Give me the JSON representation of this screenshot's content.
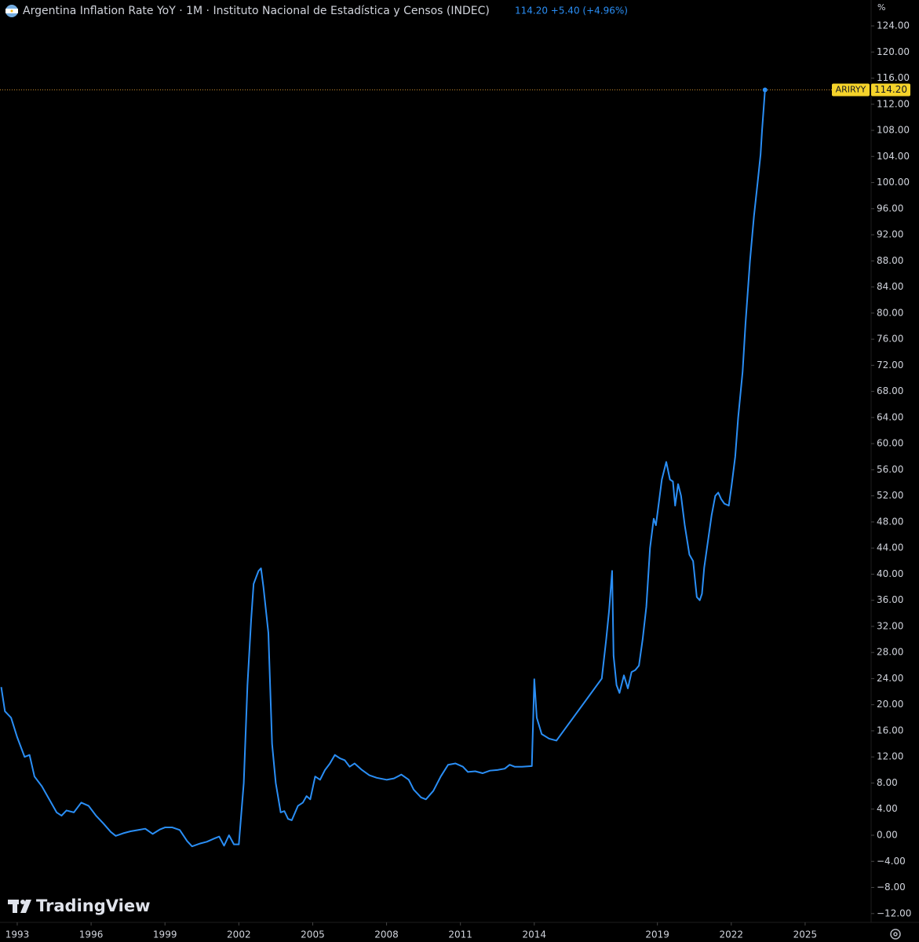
{
  "chart_data": {
    "type": "line",
    "title": "Argentina Inflation Rate YoY · 1M · Instituto Nacional de Estadística y Censos (INDEC)",
    "header_value": "114.20 +5.40 (+4.96%)",
    "y_unit": "%",
    "price_label": "114.20",
    "watermark": "TradingView",
    "xlim": [
      1992.3,
      2027.68
    ],
    "xticks": [
      1993,
      1996,
      1999,
      2002,
      2005,
      2008,
      2011,
      2014,
      2019,
      2022,
      2025
    ],
    "ylim": [
      -13.35,
      127.97
    ],
    "yticks": [
      {
        "value": -12,
        "label": "−12.00"
      },
      {
        "value": -8,
        "label": "−8.00"
      },
      {
        "value": -4,
        "label": "−4.00"
      },
      {
        "value": 0,
        "label": "0.00"
      },
      {
        "value": 4,
        "label": "4.00"
      },
      {
        "value": 8,
        "label": "8.00"
      },
      {
        "value": 12,
        "label": "12.00"
      },
      {
        "value": 16,
        "label": "16.00"
      },
      {
        "value": 20,
        "label": "20.00"
      },
      {
        "value": 24,
        "label": "24.00"
      },
      {
        "value": 28,
        "label": "28.00"
      },
      {
        "value": 32,
        "label": "32.00"
      },
      {
        "value": 36,
        "label": "36.00"
      },
      {
        "value": 40,
        "label": "40.00"
      },
      {
        "value": 44,
        "label": "44.00"
      },
      {
        "value": 48,
        "label": "48.00"
      },
      {
        "value": 52,
        "label": "52.00"
      },
      {
        "value": 56,
        "label": "56.00"
      },
      {
        "value": 60,
        "label": "60.00"
      },
      {
        "value": 64,
        "label": "64.00"
      },
      {
        "value": 68,
        "label": "68.00"
      },
      {
        "value": 72,
        "label": "72.00"
      },
      {
        "value": 76,
        "label": "76.00"
      },
      {
        "value": 80,
        "label": "80.00"
      },
      {
        "value": 84,
        "label": "84.00"
      },
      {
        "value": 88,
        "label": "88.00"
      },
      {
        "value": 92,
        "label": "92.00"
      },
      {
        "value": 96,
        "label": "96.00"
      },
      {
        "value": 100,
        "label": "100.00"
      },
      {
        "value": 104,
        "label": "104.00"
      },
      {
        "value": 108,
        "label": "108.00"
      },
      {
        "value": 112,
        "label": "112.00"
      },
      {
        "value": 116,
        "label": "116.00"
      },
      {
        "value": 120,
        "label": "120.00"
      },
      {
        "value": 124,
        "label": "124.00"
      }
    ],
    "x": [
      1992.35,
      1992.5,
      1992.75,
      1993.0,
      1993.3,
      1993.5,
      1993.7,
      1994.0,
      1994.3,
      1994.6,
      1994.8,
      1995.0,
      1995.3,
      1995.6,
      1995.9,
      1996.2,
      1996.5,
      1996.8,
      1997.0,
      1997.3,
      1997.6,
      1997.9,
      1998.2,
      1998.5,
      1998.8,
      1999.0,
      1999.3,
      1999.6,
      1999.9,
      2000.1,
      2000.4,
      2000.7,
      2001.0,
      2001.2,
      2001.4,
      2001.6,
      2001.8,
      2002.0,
      2002.2,
      2002.35,
      2002.5,
      2002.6,
      2002.8,
      2002.9,
      2003.0,
      2003.2,
      2003.35,
      2003.5,
      2003.7,
      2003.85,
      2004.0,
      2004.15,
      2004.4,
      2004.6,
      2004.75,
      2004.9,
      2005.1,
      2005.3,
      2005.5,
      2005.7,
      2005.9,
      2006.1,
      2006.3,
      2006.5,
      2006.7,
      2007.0,
      2007.3,
      2007.6,
      2008.0,
      2008.3,
      2008.6,
      2008.9,
      2009.1,
      2009.4,
      2009.6,
      2009.9,
      2010.2,
      2010.5,
      2010.8,
      2011.1,
      2011.3,
      2011.6,
      2011.9,
      2012.2,
      2012.5,
      2012.8,
      2013.0,
      2013.2,
      2013.5,
      2013.9,
      2014.0,
      2014.1,
      2014.3,
      2014.6,
      2014.9,
      2016.74,
      2016.92,
      2017.04,
      2017.16,
      2017.22,
      2017.34,
      2017.46,
      2017.64,
      2017.8,
      2017.95,
      2018.1,
      2018.25,
      2018.4,
      2018.55,
      2018.7,
      2018.85,
      2018.94,
      2019.06,
      2019.18,
      2019.36,
      2019.51,
      2019.63,
      2019.72,
      2019.84,
      2019.96,
      2020.11,
      2020.3,
      2020.45,
      2020.6,
      2020.72,
      2020.81,
      2020.9,
      2021.05,
      2021.2,
      2021.35,
      2021.47,
      2021.59,
      2021.72,
      2021.9,
      2022.01,
      2022.16,
      2022.28,
      2022.46,
      2022.58,
      2022.76,
      2022.92,
      2023.07,
      2023.19,
      2023.25,
      2023.37
    ],
    "series": [
      {
        "name": "ARIRYY",
        "color": "#2a8ef5",
        "values": [
          22.7,
          19.0,
          18.0,
          15.0,
          12.0,
          12.3,
          9.0,
          7.5,
          5.5,
          3.5,
          3.0,
          3.8,
          3.5,
          5.0,
          4.5,
          3.0,
          1.8,
          0.5,
          -0.1,
          0.3,
          0.6,
          0.8,
          1.0,
          0.2,
          0.9,
          1.2,
          1.2,
          0.8,
          -0.9,
          -1.7,
          -1.3,
          -1.0,
          -0.5,
          -0.2,
          -1.6,
          0.0,
          -1.4,
          -1.4,
          8.0,
          23.0,
          33.0,
          38.5,
          40.5,
          40.9,
          38.0,
          31.0,
          14.0,
          8.0,
          3.5,
          3.7,
          2.5,
          2.3,
          4.5,
          5.0,
          6.0,
          5.5,
          9.0,
          8.5,
          10.0,
          11.0,
          12.3,
          11.8,
          11.5,
          10.5,
          11.0,
          10.0,
          9.2,
          8.8,
          8.5,
          8.7,
          9.3,
          8.5,
          7.0,
          5.8,
          5.5,
          6.8,
          9.0,
          10.8,
          11.0,
          10.5,
          9.7,
          9.8,
          9.5,
          9.9,
          10.0,
          10.2,
          10.8,
          10.5,
          10.5,
          10.6,
          23.9,
          18.0,
          15.5,
          14.8,
          14.5,
          24.0,
          30.0,
          34.5,
          40.5,
          27.5,
          23.0,
          21.8,
          24.5,
          22.5,
          25.0,
          25.3,
          26.0,
          30.0,
          35.0,
          44.0,
          48.5,
          47.5,
          51.0,
          54.5,
          57.2,
          54.5,
          54.2,
          50.5,
          53.8,
          52.0,
          47.5,
          43.0,
          42.0,
          36.5,
          36.0,
          37.0,
          41.0,
          45.0,
          49.0,
          52.0,
          52.5,
          51.5,
          50.8,
          50.5,
          53.5,
          58.0,
          64.0,
          71.0,
          78.5,
          88.0,
          94.8,
          100.0,
          104.3,
          108.0,
          114.2
        ]
      }
    ]
  }
}
